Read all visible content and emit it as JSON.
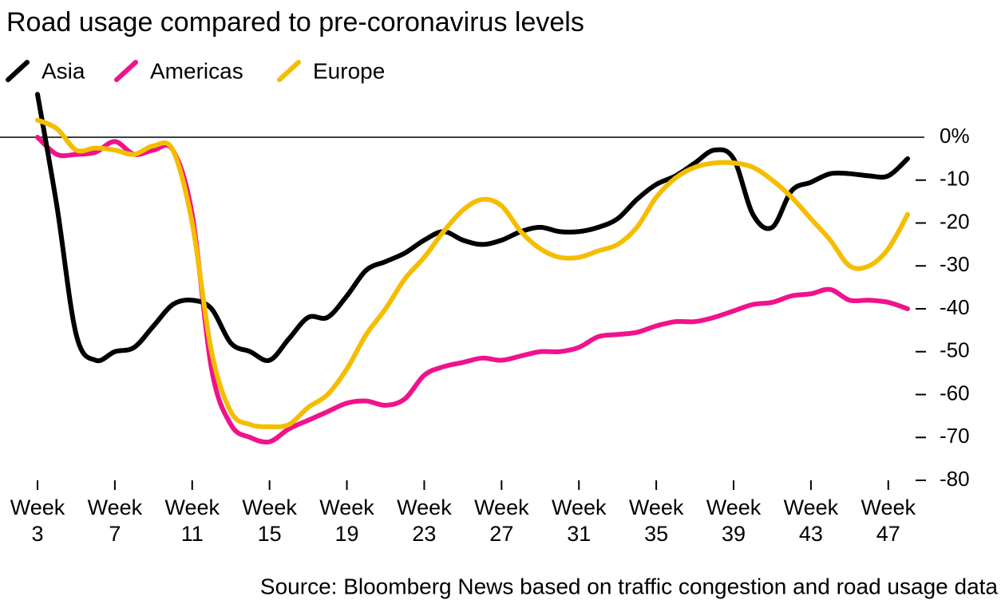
{
  "chart_data": {
    "type": "line",
    "title": "Road usage compared to pre-coronavirus levels",
    "source": "Source: Bloomberg News based on traffic congestion and road usage data",
    "x": [
      3,
      4,
      5,
      6,
      7,
      8,
      9,
      10,
      11,
      12,
      13,
      14,
      15,
      16,
      17,
      18,
      19,
      20,
      21,
      22,
      23,
      24,
      25,
      26,
      27,
      28,
      29,
      30,
      31,
      32,
      33,
      34,
      35,
      36,
      37,
      38,
      39,
      40,
      41,
      42,
      43,
      44,
      45,
      46,
      47,
      48
    ],
    "series": [
      {
        "name": "Asia",
        "color": "#000000",
        "values": [
          10,
          -16,
          -46,
          -52,
          -50,
          -49,
          -44,
          -39,
          -38,
          -40,
          -48,
          -50,
          -52,
          -47,
          -42,
          -42,
          -37,
          -31,
          -29,
          -27,
          -24,
          -22,
          -24,
          -25,
          -24,
          -22,
          -21,
          -22,
          -22,
          -21,
          -19,
          -14.5,
          -11,
          -9,
          -6,
          -3,
          -5,
          -18,
          -21,
          -12.5,
          -10.5,
          -8.5,
          -8.5,
          -9,
          -9,
          -5
        ]
      },
      {
        "name": "Americas",
        "color": "#f0128c",
        "values": [
          0,
          -4,
          -4,
          -3.5,
          -1,
          -4,
          -3,
          -3,
          -18,
          -54,
          -67,
          -70,
          -71,
          -68,
          -66,
          -64,
          -62,
          -61.5,
          -62.5,
          -61,
          -55.5,
          -53.5,
          -52.5,
          -51.5,
          -52,
          -51,
          -50,
          -50,
          -49,
          -46.5,
          -46,
          -45.5,
          -44,
          -43,
          -43,
          -42,
          -40.5,
          -39,
          -38.5,
          -37,
          -36.5,
          -35.5,
          -38,
          -38,
          -38.5,
          -40
        ]
      },
      {
        "name": "Europe",
        "color": "#f5bd00",
        "values": [
          4,
          2,
          -3,
          -2.5,
          -3,
          -4,
          -2,
          -3,
          -20,
          -50,
          -64,
          -67,
          -67.5,
          -67,
          -63,
          -60,
          -54,
          -46,
          -40,
          -33,
          -28,
          -22,
          -17,
          -14.5,
          -16,
          -22,
          -26,
          -28,
          -28,
          -26.5,
          -25,
          -21,
          -14,
          -9.5,
          -7,
          -6,
          -6,
          -7,
          -10,
          -14,
          -19,
          -24,
          -30,
          -30,
          -26,
          -18
        ]
      }
    ],
    "xlim": [
      3,
      48
    ],
    "xticks": [
      {
        "value": 3,
        "label": "Week\n3"
      },
      {
        "value": 7,
        "label": "Week\n7"
      },
      {
        "value": 11,
        "label": "Week\n11"
      },
      {
        "value": 15,
        "label": "Week\n15"
      },
      {
        "value": 19,
        "label": "Week\n19"
      },
      {
        "value": 23,
        "label": "Week\n23"
      },
      {
        "value": 27,
        "label": "Week\n27"
      },
      {
        "value": 31,
        "label": "Week\n31"
      },
      {
        "value": 35,
        "label": "Week\n35"
      },
      {
        "value": 39,
        "label": "Week\n39"
      },
      {
        "value": 43,
        "label": "Week\n43"
      },
      {
        "value": 47,
        "label": "Week\n47"
      }
    ],
    "ylim": [
      -80,
      0
    ],
    "yticks": [
      {
        "value": 0,
        "label": "0%"
      },
      -10,
      -20,
      -30,
      -40,
      -50,
      -60,
      -70,
      -80
    ],
    "legend": "top-left"
  }
}
